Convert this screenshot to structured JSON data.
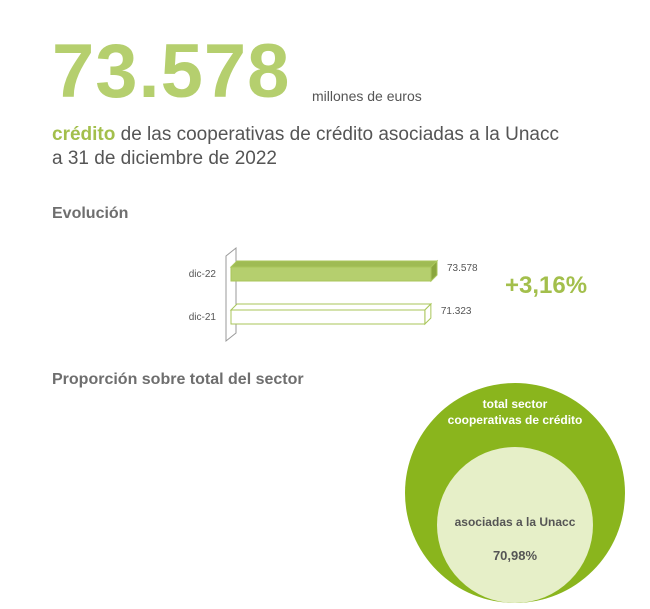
{
  "headline": {
    "value": "73.578",
    "unit": "millones de euros"
  },
  "description": {
    "highlight": "crédito",
    "line1_rest": " de las cooperativas de crédito asociadas a la Unacc",
    "line2": "a 31 de diciembre de 2022"
  },
  "evolution": {
    "title": "Evolución",
    "change": "+3,16%"
  },
  "proportion": {
    "title": "Proporción sobre total del sector",
    "outer_label_line1": "total sector",
    "outer_label_line2": "cooperativas de crédito",
    "inner_label": "asociadas a la Unacc",
    "inner_value": "70,98%",
    "inner_fraction": 0.7098,
    "colors": {
      "outer": "#8ab51d",
      "inner": "#e6efc8"
    }
  },
  "chart_data": {
    "type": "bar",
    "orientation": "horizontal",
    "categories": [
      "dic-22",
      "dic-21"
    ],
    "values": [
      73578,
      71323
    ],
    "value_labels": [
      "73.578",
      "71.323"
    ],
    "colors": {
      "dic-22": "#b5cf6e",
      "dic-21": "#ffffff",
      "stroke": "#a9c65a"
    },
    "title": "",
    "xlabel": "",
    "ylabel": ""
  }
}
